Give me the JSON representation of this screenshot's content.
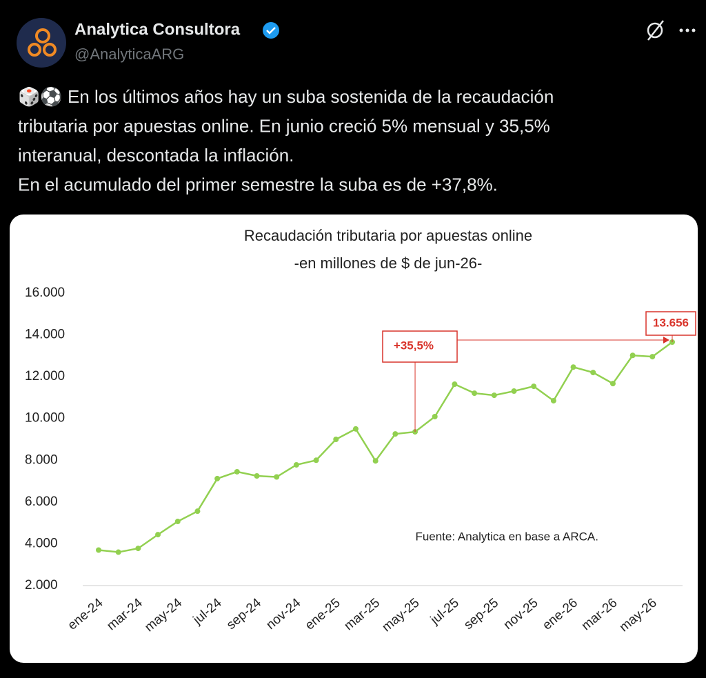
{
  "tweet": {
    "name": "Analytica Consultora",
    "handle": "@AnalyticaARG",
    "text_lines": [
      "🎲⚽ En los últimos años hay un suba sostenida de la recaudación",
      "tributaria por apuestas online. En junio creció 5% mensual y 35,5%",
      "interanual, descontada la inflación.",
      "En el acumulado del primer semestre la suba es de +37,8%."
    ]
  },
  "chart_data": {
    "type": "line",
    "title": "Recaudación tributaria por apuestas online",
    "subtitle": "-en millones de $ de jun-26-",
    "categories": [
      "ene-24",
      null,
      "mar-24",
      null,
      "may-24",
      null,
      "jul-24",
      null,
      "sep-24",
      null,
      "nov-24",
      null,
      "ene-25",
      null,
      "mar-25",
      null,
      "may-25",
      null,
      "jul-25",
      null,
      "sep-25",
      null,
      "nov-25",
      null,
      "ene-26",
      null,
      "mar-26",
      null,
      "may-26",
      null
    ],
    "values": [
      3700,
      3600,
      3780,
      4440,
      5070,
      5560,
      7120,
      7450,
      7250,
      7200,
      7780,
      8000,
      9000,
      9500,
      7970,
      9260,
      9360,
      10090,
      11640,
      11210,
      11110,
      11310,
      11540,
      10850,
      12460,
      12200,
      11670,
      13020,
      12960,
      13656
    ],
    "value_labels": [
      null,
      null,
      null,
      null,
      null,
      null,
      null,
      null,
      null,
      null,
      null,
      null,
      null,
      null,
      null,
      null,
      null,
      null,
      null,
      null,
      null,
      null,
      null,
      null,
      null,
      null,
      null,
      null,
      null,
      "13.656"
    ],
    "color": "#92d050",
    "ylim": [
      2000,
      16000
    ],
    "yticks": [
      {
        "value": 2000,
        "label": "2.000"
      },
      {
        "value": 4000,
        "label": "4.000"
      },
      {
        "value": 6000,
        "label": "6.000"
      },
      {
        "value": 8000,
        "label": "8.000"
      },
      {
        "value": 10000,
        "label": "10.000"
      },
      {
        "value": 12000,
        "label": "12.000"
      },
      {
        "value": 14000,
        "label": "14.000"
      },
      {
        "value": 16000,
        "label": "16.000"
      }
    ],
    "annotation": "+35,5%",
    "source": "Fuente: Analytica en base a ARCA."
  }
}
